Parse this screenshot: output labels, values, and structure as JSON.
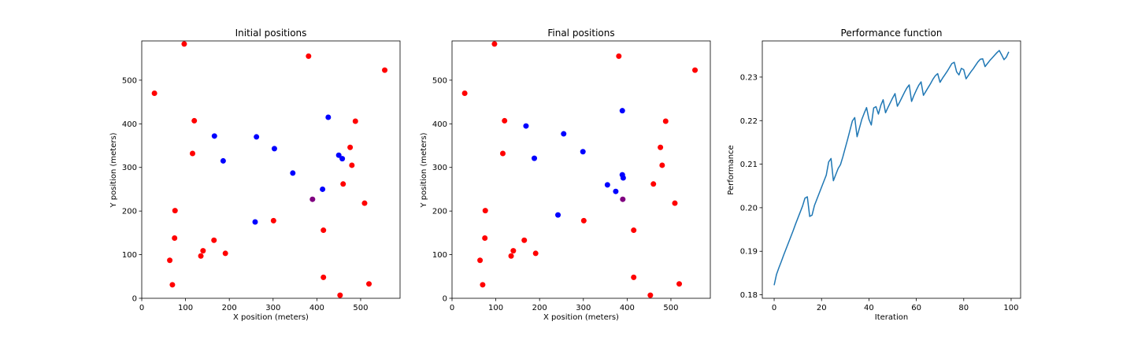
{
  "chart_data": [
    {
      "type": "scatter",
      "title": "Initial positions",
      "xlabel": "X position (meters)",
      "ylabel": "Y position (meters)",
      "xlim": [
        0,
        590
      ],
      "ylim": [
        0,
        590
      ],
      "xticks": [
        0,
        100,
        200,
        300,
        400,
        500
      ],
      "yticks": [
        0,
        100,
        200,
        300,
        400,
        500
      ],
      "grid": false,
      "series": [
        {
          "color": "#ff0000",
          "points": [
            [
              97,
              583
            ],
            [
              381,
              555
            ],
            [
              555,
              523
            ],
            [
              29,
              470
            ],
            [
              120,
              407
            ],
            [
              488,
              406
            ],
            [
              116,
              332
            ],
            [
              476,
              346
            ],
            [
              480,
              305
            ],
            [
              460,
              262
            ],
            [
              76,
              201
            ],
            [
              509,
              218
            ],
            [
              75,
              138
            ],
            [
              165,
              133
            ],
            [
              140,
              109
            ],
            [
              135,
              97
            ],
            [
              191,
              103
            ],
            [
              64,
              87
            ],
            [
              301,
              178
            ],
            [
              415,
              156
            ],
            [
              70,
              31
            ],
            [
              415,
              48
            ],
            [
              519,
              33
            ],
            [
              453,
              7
            ]
          ]
        },
        {
          "color": "#0000ff",
          "points": [
            [
              166,
              372
            ],
            [
              186,
              315
            ],
            [
              262,
              370
            ],
            [
              303,
              343
            ],
            [
              426,
              415
            ],
            [
              345,
              287
            ],
            [
              450,
              328
            ],
            [
              458,
              320
            ],
            [
              413,
              250
            ],
            [
              259,
              175
            ]
          ]
        },
        {
          "color": "#800080",
          "points": [
            [
              390,
              227
            ]
          ]
        }
      ]
    },
    {
      "type": "scatter",
      "title": "Final positions",
      "xlabel": "X position (meters)",
      "ylabel": "Y position (meters)",
      "xlim": [
        0,
        590
      ],
      "ylim": [
        0,
        590
      ],
      "xticks": [
        0,
        100,
        200,
        300,
        400,
        500
      ],
      "yticks": [
        0,
        100,
        200,
        300,
        400,
        500
      ],
      "grid": false,
      "series": [
        {
          "color": "#ff0000",
          "points": [
            [
              97,
              583
            ],
            [
              381,
              555
            ],
            [
              555,
              523
            ],
            [
              29,
              470
            ],
            [
              120,
              407
            ],
            [
              488,
              406
            ],
            [
              116,
              332
            ],
            [
              476,
              346
            ],
            [
              480,
              305
            ],
            [
              460,
              262
            ],
            [
              76,
              201
            ],
            [
              509,
              218
            ],
            [
              75,
              138
            ],
            [
              165,
              133
            ],
            [
              140,
              109
            ],
            [
              135,
              97
            ],
            [
              191,
              103
            ],
            [
              64,
              87
            ],
            [
              301,
              178
            ],
            [
              415,
              156
            ],
            [
              70,
              31
            ],
            [
              415,
              48
            ],
            [
              519,
              33
            ],
            [
              453,
              7
            ]
          ]
        },
        {
          "color": "#0000ff",
          "points": [
            [
              169,
              395
            ],
            [
              255,
              377
            ],
            [
              389,
              430
            ],
            [
              188,
              321
            ],
            [
              299,
              336
            ],
            [
              389,
              283
            ],
            [
              391,
              276
            ],
            [
              355,
              260
            ],
            [
              374,
              245
            ],
            [
              242,
              191
            ]
          ]
        },
        {
          "color": "#800080",
          "points": [
            [
              390,
              227
            ]
          ]
        }
      ]
    },
    {
      "type": "line",
      "title": "Performance function",
      "xlabel": "Iteration",
      "ylabel": "Performance",
      "xlim": [
        -5,
        104
      ],
      "ylim": [
        0.1792,
        0.2383
      ],
      "xticks": [
        0,
        20,
        40,
        60,
        80,
        100
      ],
      "yticks": [
        0.18,
        0.19,
        0.2,
        0.21,
        0.22,
        0.23
      ],
      "grid": false,
      "series": [
        {
          "color": "#1f77b4",
          "x": [
            0,
            1,
            2,
            3,
            4,
            5,
            6,
            7,
            8,
            9,
            10,
            11,
            12,
            13,
            14,
            15,
            16,
            17,
            18,
            19,
            20,
            21,
            22,
            23,
            24,
            25,
            26,
            27,
            28,
            29,
            30,
            31,
            32,
            33,
            34,
            35,
            36,
            37,
            38,
            39,
            40,
            41,
            42,
            43,
            44,
            45,
            46,
            47,
            48,
            49,
            50,
            51,
            52,
            53,
            54,
            55,
            56,
            57,
            58,
            59,
            60,
            61,
            62,
            63,
            64,
            65,
            66,
            67,
            68,
            69,
            70,
            71,
            72,
            73,
            74,
            75,
            76,
            77,
            78,
            79,
            80,
            81,
            82,
            83,
            84,
            85,
            86,
            87,
            88,
            89,
            90,
            91,
            92,
            93,
            94,
            95,
            96,
            97,
            98,
            99
          ],
          "y": [
            0.1822,
            0.1847,
            0.1862,
            0.1876,
            0.1891,
            0.1905,
            0.1919,
            0.1933,
            0.1947,
            0.1962,
            0.1976,
            0.199,
            0.2004,
            0.2022,
            0.2025,
            0.198,
            0.1983,
            0.2005,
            0.2019,
            0.2033,
            0.2047,
            0.2061,
            0.2075,
            0.2105,
            0.2113,
            0.2062,
            0.2076,
            0.209,
            0.2099,
            0.2117,
            0.2137,
            0.2157,
            0.2178,
            0.2199,
            0.2207,
            0.2163,
            0.2183,
            0.2203,
            0.2217,
            0.223,
            0.2203,
            0.219,
            0.2229,
            0.2232,
            0.2215,
            0.2235,
            0.2248,
            0.2218,
            0.223,
            0.2241,
            0.2252,
            0.2262,
            0.2233,
            0.2243,
            0.2254,
            0.2265,
            0.2275,
            0.2282,
            0.2244,
            0.2258,
            0.227,
            0.2281,
            0.2289,
            0.2258,
            0.2267,
            0.2276,
            0.2285,
            0.2295,
            0.2303,
            0.2308,
            0.2288,
            0.2297,
            0.2305,
            0.2313,
            0.2322,
            0.2331,
            0.2334,
            0.2312,
            0.2305,
            0.232,
            0.2317,
            0.2296,
            0.2304,
            0.2312,
            0.2319,
            0.2327,
            0.2335,
            0.2341,
            0.2342,
            0.2324,
            0.2331,
            0.2338,
            0.2344,
            0.235,
            0.2356,
            0.2361,
            0.2351,
            0.234,
            0.2346,
            0.2358
          ]
        }
      ]
    }
  ]
}
